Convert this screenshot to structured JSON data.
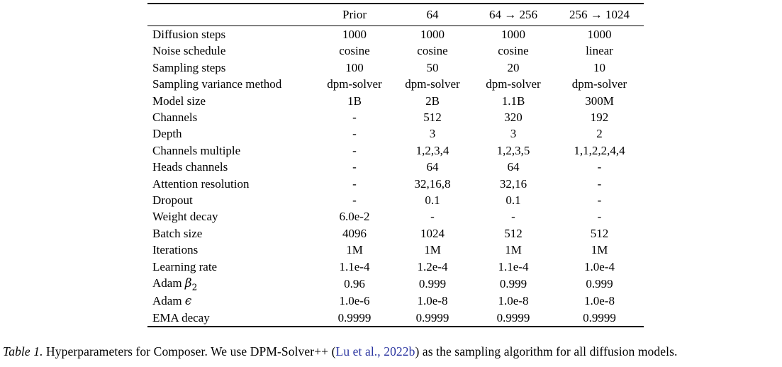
{
  "table": {
    "header": {
      "col0": "",
      "cols": [
        "Prior",
        "64",
        "64 → 256",
        "256 → 1024"
      ]
    },
    "rows": [
      {
        "label": "Diffusion steps",
        "values": [
          "1000",
          "1000",
          "1000",
          "1000"
        ]
      },
      {
        "label": "Noise schedule",
        "values": [
          "cosine",
          "cosine",
          "cosine",
          "linear"
        ]
      },
      {
        "label": "Sampling steps",
        "values": [
          "100",
          "50",
          "20",
          "10"
        ]
      },
      {
        "label": "Sampling variance method",
        "values": [
          "dpm-solver",
          "dpm-solver",
          "dpm-solver",
          "dpm-solver"
        ]
      },
      {
        "label": "Model size",
        "values": [
          "1B",
          "2B",
          "1.1B",
          "300M"
        ]
      },
      {
        "label": "Channels",
        "values": [
          "-",
          "512",
          "320",
          "192"
        ]
      },
      {
        "label": "Depth",
        "values": [
          "-",
          "3",
          "3",
          "2"
        ]
      },
      {
        "label": "Channels multiple",
        "values": [
          "-",
          "1,2,3,4",
          "1,2,3,5",
          "1,1,2,2,4,4"
        ]
      },
      {
        "label": "Heads channels",
        "values": [
          "-",
          "64",
          "64",
          "-"
        ]
      },
      {
        "label": "Attention resolution",
        "values": [
          "-",
          "32,16,8",
          "32,16",
          "-"
        ]
      },
      {
        "label": "Dropout",
        "values": [
          "-",
          "0.1",
          "0.1",
          "-"
        ]
      },
      {
        "label": "Weight decay",
        "values": [
          "6.0e-2",
          "-",
          "-",
          "-"
        ]
      },
      {
        "label": "Batch size",
        "values": [
          "4096",
          "1024",
          "512",
          "512"
        ]
      },
      {
        "label": "Iterations",
        "values": [
          "1M",
          "1M",
          "1M",
          "1M"
        ]
      },
      {
        "label": "Learning rate",
        "values": [
          "1.1e-4",
          "1.2e-4",
          "1.1e-4",
          "1.0e-4"
        ]
      },
      {
        "label": "Adam ",
        "math": "β",
        "sub": "2",
        "values": [
          "0.96",
          "0.999",
          "0.999",
          "0.999"
        ]
      },
      {
        "label": "Adam ",
        "math": "ϵ",
        "values": [
          "1.0e-6",
          "1.0e-8",
          "1.0e-8",
          "1.0e-8"
        ]
      },
      {
        "label": "EMA decay",
        "values": [
          "0.9999",
          "0.9999",
          "0.9999",
          "0.9999"
        ]
      }
    ]
  },
  "caption": {
    "label": "Table 1.",
    "text_before_citation": " Hyperparameters for Composer. We use DPM-Solver++ (",
    "citation": "Lu et al., 2022b",
    "text_after_citation": ") as the sampling algorithm for all diffusion models.",
    "citation_color": "#2b35a0"
  },
  "colors": {
    "text": "#000000",
    "rule": "#000000"
  }
}
